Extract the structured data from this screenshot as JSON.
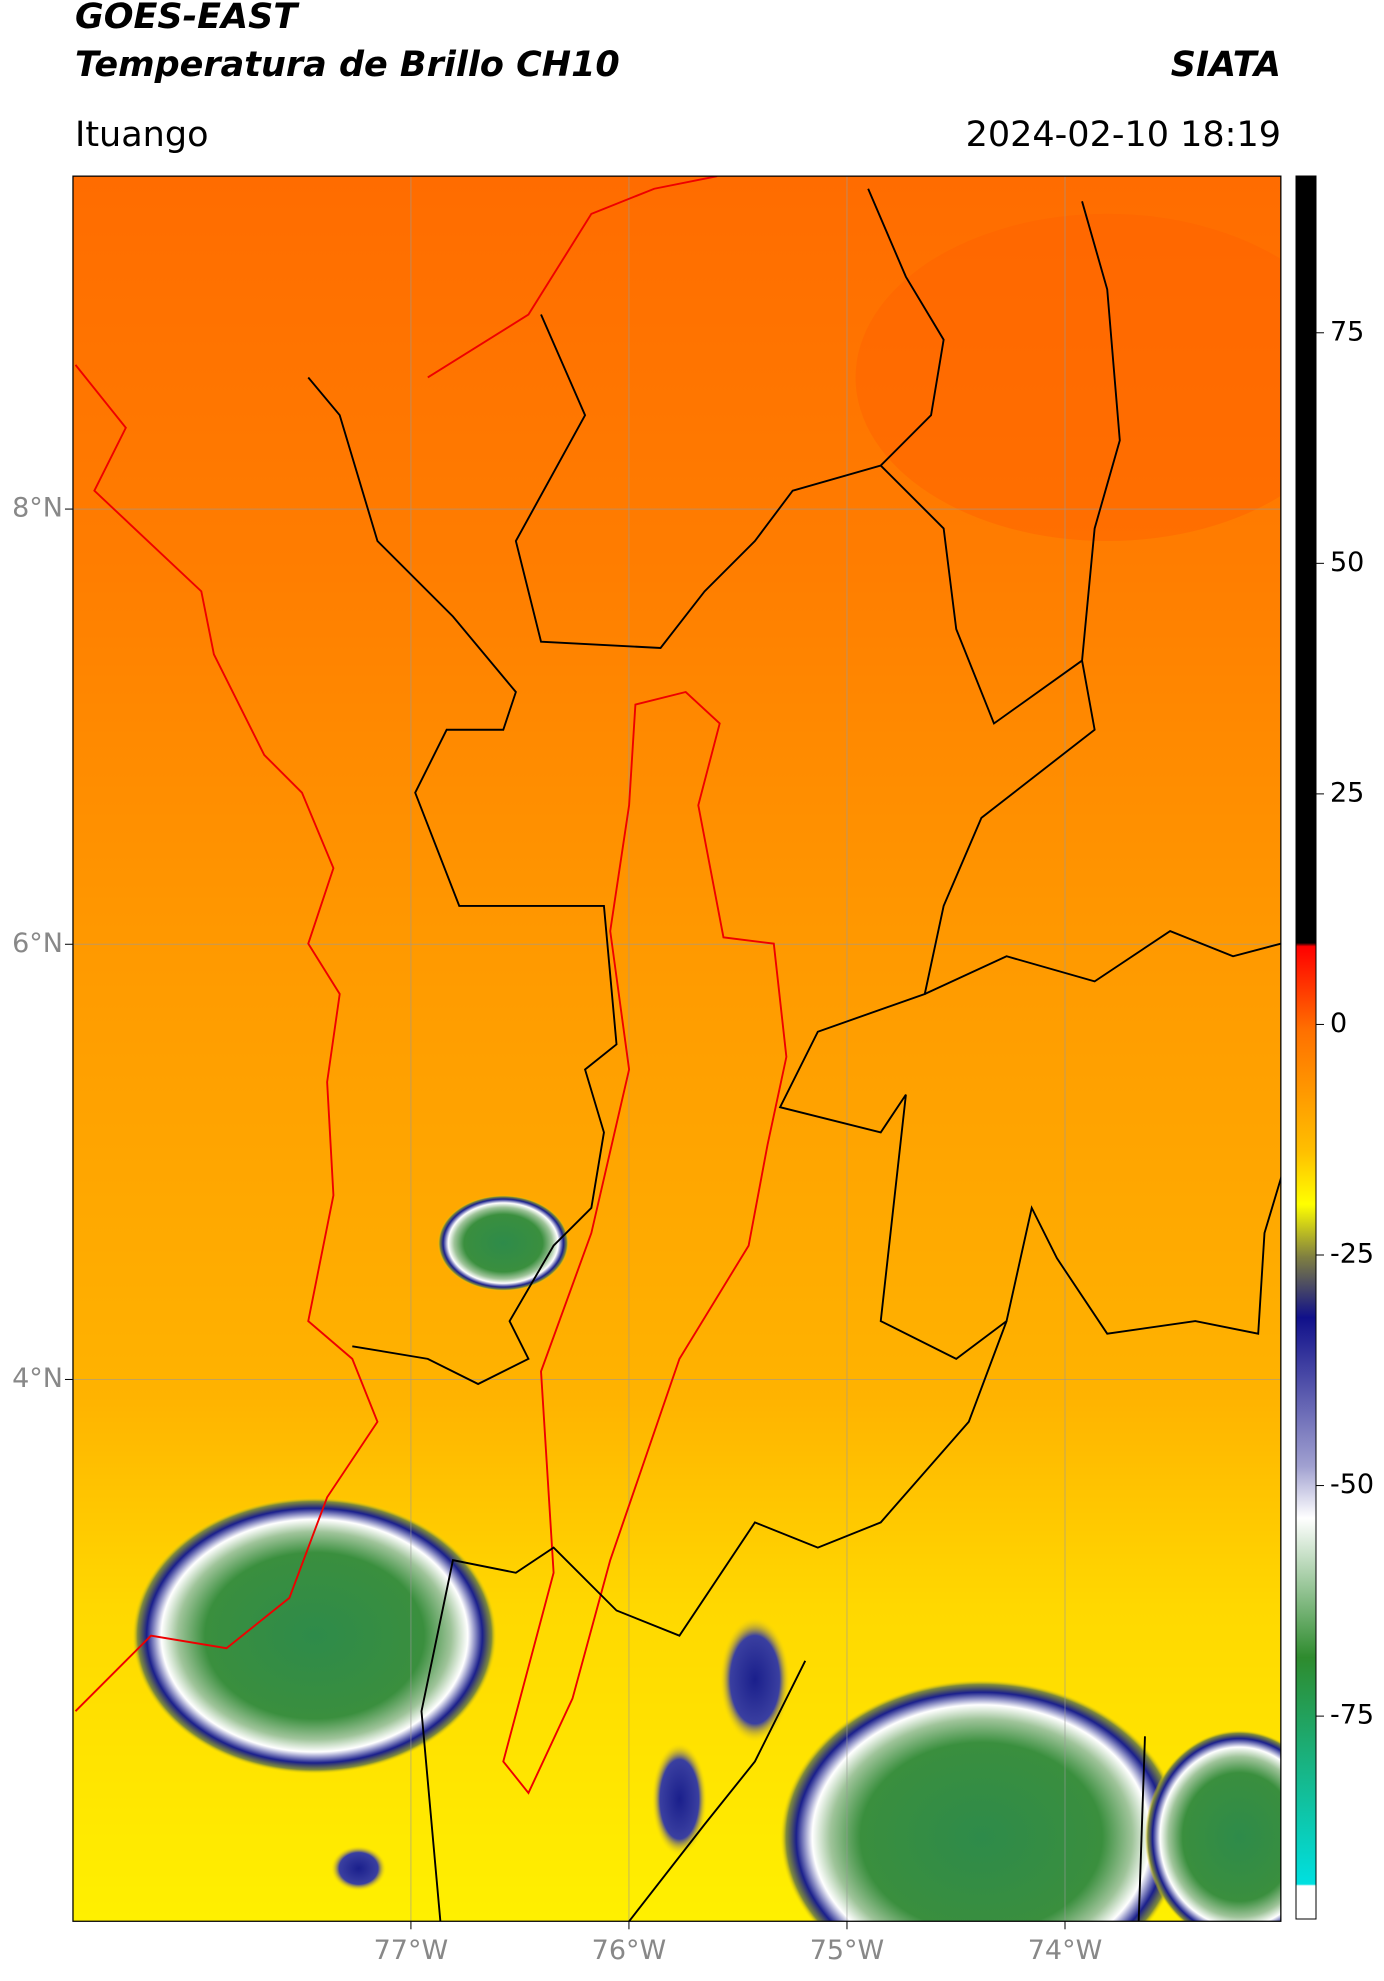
{
  "chart_data": {
    "type": "map",
    "title": "GOES-EAST",
    "subtitle": "Temperatura de Brillo CH10",
    "source": "SIATA",
    "location": "Ituango",
    "datetime": "2024-02-10 18:19",
    "xlim": [
      -78.55,
      -73.01
    ],
    "ylim": [
      1.51,
      9.53
    ],
    "xticks": [
      {
        "value": -77,
        "label": "77°W"
      },
      {
        "value": -76,
        "label": "76°W"
      },
      {
        "value": -75,
        "label": "75°W"
      },
      {
        "value": -74,
        "label": "74°W"
      }
    ],
    "yticks": [
      {
        "value": 8,
        "label": "8°N"
      },
      {
        "value": 6,
        "label": "6°N"
      },
      {
        "value": 4,
        "label": "4°N"
      }
    ],
    "grid": true,
    "colorbar_lim": [
      -97,
      92
    ],
    "colorbar_ticks": [
      75,
      50,
      25,
      0,
      -25,
      -50,
      -75
    ]
  }
}
